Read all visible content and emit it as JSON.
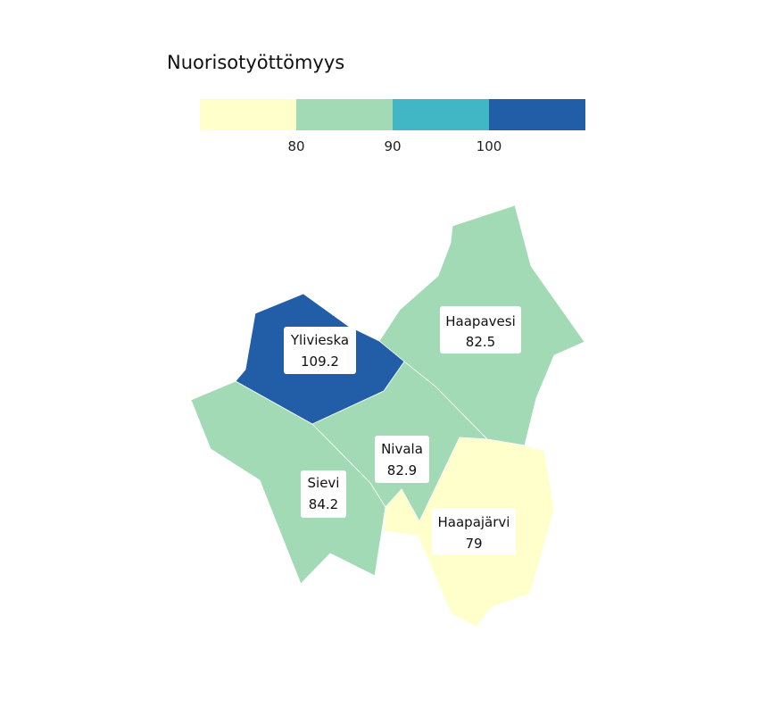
{
  "legend": {
    "title": "Nuorisotyöttömyys",
    "ticks": [
      "80",
      "90",
      "100"
    ],
    "colors": [
      "#ffffcc",
      "#a1dab4",
      "#41b6c4",
      "#225ea8"
    ]
  },
  "regions": [
    {
      "name": "Haapavesi",
      "value": "82.5",
      "color": "#a1dab4"
    },
    {
      "name": "Ylivieska",
      "value": "109.2",
      "color": "#225ea8"
    },
    {
      "name": "Sievi",
      "value": "84.2",
      "color": "#a1dab4"
    },
    {
      "name": "Nivala",
      "value": "82.9",
      "color": "#a1dab4"
    },
    {
      "name": "Haapajärvi",
      "value": "79",
      "color": "#ffffcc"
    }
  ]
}
